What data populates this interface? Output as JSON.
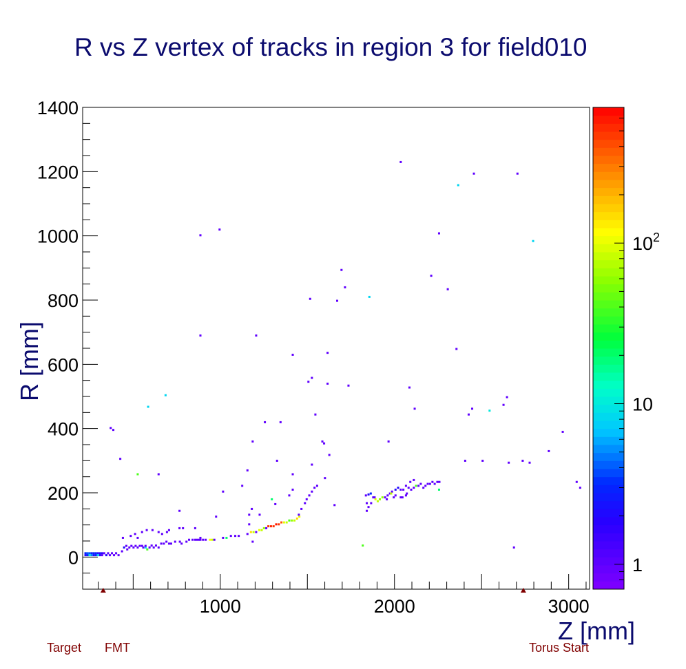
{
  "chart_data": {
    "type": "heatmap",
    "title": "R vs Z vertex of tracks in region 3 for field010",
    "xlabel": "Z [mm]",
    "ylabel": "R [mm]",
    "xlim": [
      210,
      3120
    ],
    "ylim": [
      -100,
      1400
    ],
    "x_ticks": [
      1000,
      2000,
      3000
    ],
    "y_ticks": [
      0,
      200,
      400,
      600,
      800,
      1000,
      1200,
      1400
    ],
    "colorbar": {
      "scale": "log",
      "range": [
        0.7,
        700
      ],
      "tick_labels": [
        {
          "value": 1,
          "label": "1"
        },
        {
          "value": 10,
          "label": "10"
        },
        {
          "value": 100,
          "label": "10",
          "sup": "2"
        }
      ]
    },
    "bin_size": [
      12,
      6
    ],
    "bins": [
      [
        220,
        12,
        3
      ],
      [
        232,
        12,
        4
      ],
      [
        244,
        12,
        4
      ],
      [
        256,
        12,
        3
      ],
      [
        268,
        12,
        3
      ],
      [
        280,
        12,
        3
      ],
      [
        292,
        12,
        2
      ],
      [
        304,
        12,
        2
      ],
      [
        316,
        12,
        2
      ],
      [
        328,
        12,
        1
      ],
      [
        220,
        6,
        2
      ],
      [
        232,
        6,
        3
      ],
      [
        244,
        6,
        10
      ],
      [
        256,
        6,
        5
      ],
      [
        268,
        6,
        2
      ],
      [
        280,
        6,
        3
      ],
      [
        292,
        6,
        8
      ],
      [
        304,
        6,
        2
      ],
      [
        316,
        6,
        1
      ],
      [
        340,
        6,
        2
      ],
      [
        350,
        12,
        1
      ],
      [
        360,
        6,
        1
      ],
      [
        372,
        12,
        1
      ],
      [
        384,
        6,
        1
      ],
      [
        396,
        12,
        1
      ],
      [
        410,
        6,
        1
      ],
      [
        430,
        18,
        1
      ],
      [
        442,
        30,
        2
      ],
      [
        455,
        35,
        1
      ],
      [
        460,
        24,
        1
      ],
      [
        472,
        30,
        1
      ],
      [
        484,
        35,
        1
      ],
      [
        496,
        30,
        1
      ],
      [
        508,
        35,
        1
      ],
      [
        520,
        30,
        1
      ],
      [
        532,
        35,
        1
      ],
      [
        545,
        35,
        1
      ],
      [
        552,
        30,
        1
      ],
      [
        565,
        30,
        8
      ],
      [
        565,
        35,
        1
      ],
      [
        575,
        24,
        40
      ],
      [
        588,
        30,
        1
      ],
      [
        600,
        36,
        1
      ],
      [
        612,
        30,
        1
      ],
      [
        625,
        36,
        1
      ],
      [
        640,
        30,
        1
      ],
      [
        655,
        42,
        1
      ],
      [
        670,
        42,
        1
      ],
      [
        685,
        48,
        1
      ],
      [
        700,
        42,
        1
      ],
      [
        712,
        42,
        1
      ],
      [
        735,
        48,
        1
      ],
      [
        762,
        48,
        1
      ],
      [
        772,
        42,
        1
      ],
      [
        800,
        48,
        1
      ],
      [
        815,
        54,
        1
      ],
      [
        835,
        54,
        1
      ],
      [
        850,
        54,
        1
      ],
      [
        870,
        54,
        1
      ],
      [
        880,
        54,
        1
      ],
      [
        895,
        54,
        1
      ],
      [
        910,
        54,
        1
      ],
      [
        935,
        54,
        120
      ],
      [
        948,
        54,
        80
      ],
      [
        960,
        54,
        1
      ],
      [
        1010,
        60,
        1
      ],
      [
        1030,
        60,
        20
      ],
      [
        1055,
        66,
        1
      ],
      [
        1080,
        66,
        1
      ],
      [
        1100,
        66,
        1
      ],
      [
        1150,
        72,
        1
      ],
      [
        1170,
        78,
        150
      ],
      [
        1185,
        78,
        80
      ],
      [
        1200,
        78,
        1
      ],
      [
        1218,
        84,
        100
      ],
      [
        1232,
        84,
        80
      ],
      [
        1245,
        90,
        60
      ],
      [
        1258,
        90,
        1
      ],
      [
        1270,
        96,
        500
      ],
      [
        1285,
        96,
        550
      ],
      [
        1300,
        96,
        500
      ],
      [
        1315,
        102,
        600
      ],
      [
        1330,
        102,
        500
      ],
      [
        1345,
        108,
        400
      ],
      [
        1360,
        108,
        100
      ],
      [
        1375,
        108,
        80
      ],
      [
        1390,
        114,
        40
      ],
      [
        1405,
        114,
        60
      ],
      [
        1420,
        114,
        80
      ],
      [
        1435,
        120,
        150
      ],
      [
        1448,
        126,
        100
      ],
      [
        435,
        60,
        1
      ],
      [
        480,
        66,
        1
      ],
      [
        505,
        72,
        1
      ],
      [
        520,
        60,
        1
      ],
      [
        545,
        78,
        1
      ],
      [
        572,
        84,
        1
      ],
      [
        605,
        84,
        1
      ],
      [
        640,
        78,
        1
      ],
      [
        660,
        72,
        1
      ],
      [
        688,
        78,
        1
      ],
      [
        700,
        84,
        1
      ],
      [
        760,
        90,
        1
      ],
      [
        780,
        90,
        1
      ],
      [
        860,
        54,
        1
      ],
      [
        880,
        60,
        1
      ],
      [
        1180,
        48,
        1
      ],
      [
        1160,
        102,
        1
      ],
      [
        1160,
        132,
        1
      ],
      [
        1175,
        150,
        1
      ],
      [
        1220,
        132,
        1
      ],
      [
        1290,
        180,
        20
      ],
      [
        1310,
        165,
        1
      ],
      [
        1390,
        192,
        1
      ],
      [
        1410,
        210,
        1
      ],
      [
        1445,
        132,
        1
      ],
      [
        1460,
        150,
        1
      ],
      [
        1480,
        168,
        1
      ],
      [
        1490,
        180,
        1
      ],
      [
        1505,
        192,
        1
      ],
      [
        1520,
        204,
        1
      ],
      [
        1535,
        216,
        1
      ],
      [
        1550,
        222,
        1
      ],
      [
        1595,
        246,
        1
      ],
      [
        1620,
        318,
        1
      ],
      [
        1650,
        162,
        1
      ],
      [
        1830,
        192,
        1
      ],
      [
        1845,
        195,
        2
      ],
      [
        1858,
        198,
        3
      ],
      [
        1872,
        186,
        1
      ],
      [
        1885,
        180,
        100
      ],
      [
        1898,
        174,
        80
      ],
      [
        1910,
        180,
        60
      ],
      [
        1925,
        186,
        60
      ],
      [
        1940,
        186,
        1
      ],
      [
        1955,
        192,
        1
      ],
      [
        1968,
        198,
        1
      ],
      [
        1980,
        204,
        1
      ],
      [
        2000,
        210,
        2
      ],
      [
        2015,
        216,
        2
      ],
      [
        2030,
        210,
        1
      ],
      [
        2045,
        210,
        1
      ],
      [
        2060,
        222,
        1
      ],
      [
        2075,
        216,
        1
      ],
      [
        2090,
        210,
        1
      ],
      [
        2105,
        216,
        1
      ],
      [
        2118,
        222,
        40
      ],
      [
        2132,
        222,
        1
      ],
      [
        2145,
        228,
        1
      ],
      [
        2160,
        216,
        1
      ],
      [
        2172,
        222,
        1
      ],
      [
        2185,
        228,
        1
      ],
      [
        2198,
        228,
        1
      ],
      [
        2212,
        234,
        1
      ],
      [
        2225,
        228,
        1
      ],
      [
        2240,
        234,
        1
      ],
      [
        2250,
        210,
        20
      ],
      [
        2252,
        234,
        1
      ],
      [
        1835,
        144,
        1
      ],
      [
        1845,
        156,
        1
      ],
      [
        1860,
        168,
        1
      ],
      [
        1880,
        186,
        1
      ],
      [
        1990,
        186,
        1
      ],
      [
        2030,
        186,
        1
      ],
      [
        2060,
        192,
        1
      ],
      [
        2065,
        198,
        1
      ],
      [
        1812,
        36,
        40
      ],
      [
        1835,
        168,
        1
      ],
      [
        1950,
        180,
        1
      ],
      [
        1975,
        198,
        80
      ],
      [
        2000,
        192,
        1
      ],
      [
        2040,
        186,
        1
      ],
      [
        2085,
        234,
        1
      ],
      [
        2105,
        240,
        1
      ],
      [
        2680,
        30,
        1
      ],
      [
        2650,
        294,
        1
      ],
      [
        2730,
        300,
        1
      ],
      [
        2770,
        294,
        1
      ],
      [
        2880,
        330,
        1
      ],
      [
        2960,
        390,
        1
      ],
      [
        3040,
        234,
        1
      ],
      [
        3060,
        216,
        1
      ],
      [
        2500,
        300,
        1
      ],
      [
        2400,
        300,
        1
      ],
      [
        2420,
        444,
        1
      ],
      [
        2440,
        462,
        1
      ],
      [
        2540,
        456,
        10
      ],
      [
        2620,
        474,
        1
      ],
      [
        2640,
        498,
        1
      ],
      [
        2110,
        462,
        1
      ],
      [
        2080,
        528,
        1
      ],
      [
        1960,
        360,
        1
      ],
      [
        1730,
        534,
        1
      ],
      [
        1610,
        540,
        1
      ],
      [
        1520,
        558,
        1
      ],
      [
        1500,
        546,
        1
      ],
      [
        1540,
        444,
        1
      ],
      [
        1340,
        420,
        1
      ],
      [
        1410,
        630,
        1
      ],
      [
        1200,
        690,
        1
      ],
      [
        1610,
        636,
        1
      ],
      [
        1590,
        354,
        1
      ],
      [
        1580,
        360,
        1
      ],
      [
        1520,
        288,
        1
      ],
      [
        1410,
        258,
        1
      ],
      [
        1320,
        300,
        1
      ],
      [
        1250,
        420,
        1
      ],
      [
        1180,
        360,
        1
      ],
      [
        1150,
        270,
        1
      ],
      [
        1120,
        222,
        1
      ],
      [
        1010,
        204,
        1
      ],
      [
        970,
        126,
        1
      ],
      [
        850,
        90,
        1
      ],
      [
        760,
        144,
        1
      ],
      [
        640,
        258,
        1
      ],
      [
        520,
        258,
        40
      ],
      [
        580,
        468,
        8
      ],
      [
        680,
        504,
        8
      ],
      [
        380,
        396,
        1
      ],
      [
        365,
        402,
        1
      ],
      [
        420,
        306,
        1
      ],
      [
        880,
        690,
        1
      ],
      [
        880,
        1002,
        1
      ],
      [
        990,
        1020,
        1
      ],
      [
        1510,
        804,
        1
      ],
      [
        1665,
        798,
        1
      ],
      [
        1690,
        894,
        1
      ],
      [
        1710,
        840,
        1
      ],
      [
        1850,
        810,
        8
      ],
      [
        2030,
        1230,
        1
      ],
      [
        2205,
        876,
        1
      ],
      [
        2250,
        1008,
        1
      ],
      [
        2300,
        834,
        1
      ],
      [
        2350,
        648,
        1
      ],
      [
        2360,
        1158,
        8
      ],
      [
        2450,
        1194,
        1
      ],
      [
        2700,
        1194,
        1
      ],
      [
        2790,
        984,
        8
      ]
    ],
    "annotations": [
      {
        "label": "Target",
        "z": 328
      },
      {
        "label": "FMT",
        "z": 328
      },
      {
        "label": "Torus Start",
        "z": 2740
      }
    ]
  }
}
